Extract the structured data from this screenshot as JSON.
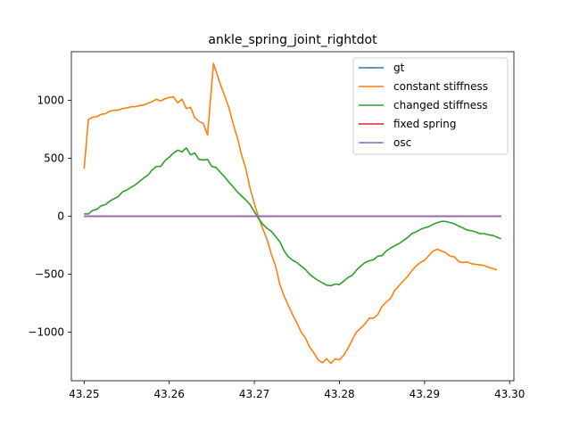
{
  "chart_data": {
    "type": "line",
    "title": "ankle_spring_joint_rightdot",
    "xlabel": "",
    "ylabel": "",
    "xlim": [
      43.2485,
      43.3005
    ],
    "ylim": [
      -1420,
      1420
    ],
    "xticks": [
      43.25,
      43.26,
      43.27,
      43.28,
      43.29,
      43.3
    ],
    "xtick_labels": [
      "43.25",
      "43.26",
      "43.27",
      "43.28",
      "43.29",
      "43.30"
    ],
    "yticks": [
      -1000,
      -500,
      0,
      500,
      1000
    ],
    "ytick_labels": [
      "−1000",
      "−500",
      "0",
      "500",
      "1000"
    ],
    "grid": false,
    "legend_position": "top-right",
    "series": [
      {
        "name": "gt",
        "color": "#1f77b4",
        "points": [
          [
            43.25,
            0
          ],
          [
            43.299,
            0
          ]
        ]
      },
      {
        "name": "constant stiffness",
        "color": "#ff7f0e",
        "points": [
          [
            43.25,
            410
          ],
          [
            43.2505,
            835
          ],
          [
            43.251,
            855
          ],
          [
            43.2515,
            860
          ],
          [
            43.252,
            880
          ],
          [
            43.2525,
            885
          ],
          [
            43.253,
            905
          ],
          [
            43.2535,
            915
          ],
          [
            43.254,
            915
          ],
          [
            43.2545,
            930
          ],
          [
            43.255,
            935
          ],
          [
            43.2555,
            945
          ],
          [
            43.256,
            945
          ],
          [
            43.2565,
            955
          ],
          [
            43.257,
            960
          ],
          [
            43.2575,
            975
          ],
          [
            43.258,
            990
          ],
          [
            43.2585,
            1010
          ],
          [
            43.259,
            995
          ],
          [
            43.2595,
            1015
          ],
          [
            43.26,
            1025
          ],
          [
            43.2605,
            1030
          ],
          [
            43.261,
            980
          ],
          [
            43.2615,
            1010
          ],
          [
            43.262,
            930
          ],
          [
            43.2625,
            940
          ],
          [
            43.263,
            850
          ],
          [
            43.2635,
            820
          ],
          [
            43.264,
            800
          ],
          [
            43.2645,
            700
          ],
          [
            43.2652,
            1320
          ],
          [
            43.266,
            1140
          ],
          [
            43.2665,
            1040
          ],
          [
            43.267,
            940
          ],
          [
            43.2675,
            800
          ],
          [
            43.268,
            680
          ],
          [
            43.2685,
            530
          ],
          [
            43.269,
            410
          ],
          [
            43.2695,
            240
          ],
          [
            43.27,
            110
          ],
          [
            43.2705,
            -10
          ],
          [
            43.271,
            -110
          ],
          [
            43.2715,
            -200
          ],
          [
            43.272,
            -330
          ],
          [
            43.2725,
            -430
          ],
          [
            43.273,
            -590
          ],
          [
            43.2735,
            -690
          ],
          [
            43.274,
            -770
          ],
          [
            43.2745,
            -850
          ],
          [
            43.275,
            -920
          ],
          [
            43.2755,
            -1000
          ],
          [
            43.276,
            -1050
          ],
          [
            43.2765,
            -1130
          ],
          [
            43.277,
            -1180
          ],
          [
            43.2775,
            -1240
          ],
          [
            43.278,
            -1265
          ],
          [
            43.2785,
            -1230
          ],
          [
            43.279,
            -1270
          ],
          [
            43.2795,
            -1230
          ],
          [
            43.28,
            -1240
          ],
          [
            43.2805,
            -1200
          ],
          [
            43.281,
            -1140
          ],
          [
            43.2815,
            -1070
          ],
          [
            43.282,
            -1000
          ],
          [
            43.2825,
            -965
          ],
          [
            43.283,
            -930
          ],
          [
            43.2835,
            -880
          ],
          [
            43.284,
            -880
          ],
          [
            43.2845,
            -850
          ],
          [
            43.285,
            -780
          ],
          [
            43.2855,
            -740
          ],
          [
            43.286,
            -710
          ],
          [
            43.2865,
            -640
          ],
          [
            43.287,
            -600
          ],
          [
            43.2875,
            -560
          ],
          [
            43.288,
            -520
          ],
          [
            43.2885,
            -470
          ],
          [
            43.289,
            -430
          ],
          [
            43.2895,
            -400
          ],
          [
            43.29,
            -380
          ],
          [
            43.2905,
            -340
          ],
          [
            43.291,
            -300
          ],
          [
            43.2915,
            -285
          ],
          [
            43.292,
            -300
          ],
          [
            43.2925,
            -315
          ],
          [
            43.293,
            -345
          ],
          [
            43.2935,
            -350
          ],
          [
            43.294,
            -390
          ],
          [
            43.2945,
            -400
          ],
          [
            43.295,
            -395
          ],
          [
            43.2955,
            -410
          ],
          [
            43.296,
            -415
          ],
          [
            43.2965,
            -420
          ],
          [
            43.297,
            -425
          ],
          [
            43.2975,
            -440
          ],
          [
            43.298,
            -450
          ],
          [
            43.2985,
            -465
          ]
        ]
      },
      {
        "name": "changed stiffness",
        "color": "#2ca02c",
        "points": [
          [
            43.25,
            20
          ],
          [
            43.2505,
            20
          ],
          [
            43.251,
            50
          ],
          [
            43.2515,
            60
          ],
          [
            43.252,
            90
          ],
          [
            43.2525,
            100
          ],
          [
            43.253,
            130
          ],
          [
            43.2535,
            150
          ],
          [
            43.254,
            170
          ],
          [
            43.2545,
            210
          ],
          [
            43.255,
            225
          ],
          [
            43.2555,
            250
          ],
          [
            43.256,
            270
          ],
          [
            43.2565,
            300
          ],
          [
            43.257,
            330
          ],
          [
            43.2575,
            355
          ],
          [
            43.258,
            400
          ],
          [
            43.2585,
            430
          ],
          [
            43.259,
            430
          ],
          [
            43.2595,
            480
          ],
          [
            43.26,
            510
          ],
          [
            43.2605,
            545
          ],
          [
            43.261,
            570
          ],
          [
            43.2615,
            555
          ],
          [
            43.262,
            590
          ],
          [
            43.2625,
            530
          ],
          [
            43.263,
            545
          ],
          [
            43.2635,
            490
          ],
          [
            43.264,
            485
          ],
          [
            43.2645,
            490
          ],
          [
            43.265,
            430
          ],
          [
            43.2655,
            420
          ],
          [
            43.266,
            380
          ],
          [
            43.2665,
            340
          ],
          [
            43.267,
            295
          ],
          [
            43.2675,
            255
          ],
          [
            43.268,
            210
          ],
          [
            43.2685,
            175
          ],
          [
            43.269,
            140
          ],
          [
            43.2695,
            100
          ],
          [
            43.27,
            40
          ],
          [
            43.2705,
            -20
          ],
          [
            43.271,
            -70
          ],
          [
            43.2715,
            -105
          ],
          [
            43.272,
            -130
          ],
          [
            43.2725,
            -175
          ],
          [
            43.273,
            -220
          ],
          [
            43.2735,
            -300
          ],
          [
            43.274,
            -350
          ],
          [
            43.2745,
            -380
          ],
          [
            43.275,
            -400
          ],
          [
            43.2755,
            -430
          ],
          [
            43.276,
            -460
          ],
          [
            43.2765,
            -500
          ],
          [
            43.277,
            -530
          ],
          [
            43.2775,
            -555
          ],
          [
            43.278,
            -575
          ],
          [
            43.2785,
            -595
          ],
          [
            43.279,
            -600
          ],
          [
            43.2795,
            -585
          ],
          [
            43.28,
            -590
          ],
          [
            43.2805,
            -560
          ],
          [
            43.281,
            -530
          ],
          [
            43.2815,
            -510
          ],
          [
            43.282,
            -465
          ],
          [
            43.2825,
            -430
          ],
          [
            43.283,
            -400
          ],
          [
            43.2835,
            -385
          ],
          [
            43.284,
            -375
          ],
          [
            43.2845,
            -345
          ],
          [
            43.285,
            -340
          ],
          [
            43.2855,
            -300
          ],
          [
            43.286,
            -275
          ],
          [
            43.2865,
            -255
          ],
          [
            43.287,
            -235
          ],
          [
            43.2875,
            -210
          ],
          [
            43.288,
            -185
          ],
          [
            43.2885,
            -150
          ],
          [
            43.289,
            -135
          ],
          [
            43.2895,
            -115
          ],
          [
            43.29,
            -100
          ],
          [
            43.2905,
            -90
          ],
          [
            43.291,
            -70
          ],
          [
            43.2915,
            -55
          ],
          [
            43.292,
            -45
          ],
          [
            43.2925,
            -45
          ],
          [
            43.293,
            -55
          ],
          [
            43.2935,
            -65
          ],
          [
            43.294,
            -85
          ],
          [
            43.2945,
            -100
          ],
          [
            43.295,
            -120
          ],
          [
            43.2955,
            -125
          ],
          [
            43.296,
            -135
          ],
          [
            43.2965,
            -150
          ],
          [
            43.297,
            -150
          ],
          [
            43.2975,
            -160
          ],
          [
            43.298,
            -165
          ],
          [
            43.2985,
            -180
          ],
          [
            43.299,
            -195
          ]
        ]
      },
      {
        "name": "fixed spring",
        "color": "#d62728",
        "points": [
          [
            43.25,
            0
          ],
          [
            43.299,
            0
          ]
        ]
      },
      {
        "name": "osc",
        "color": "#9467bd",
        "points": [
          [
            43.25,
            0
          ],
          [
            43.299,
            0
          ]
        ]
      }
    ]
  }
}
